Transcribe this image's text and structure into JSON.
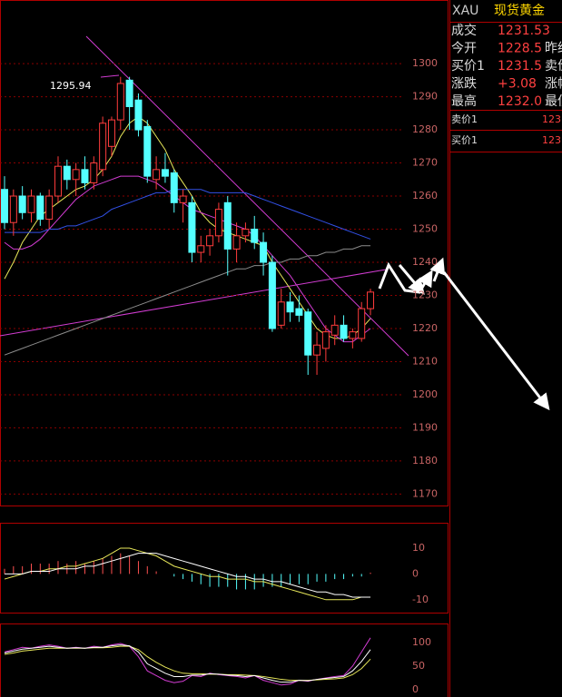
{
  "quote": {
    "symbol": "XAU",
    "name": "现货黄金",
    "rows": [
      [
        "成交",
        "1231.53",
        ""
      ],
      [
        "今开",
        "1228.5",
        "昨结"
      ],
      [
        "买价1",
        "1231.5",
        "卖价"
      ],
      [
        "涨跌",
        "+3.08",
        "涨幅"
      ],
      [
        "最高",
        "1232.0",
        "最低"
      ]
    ],
    "book": [
      [
        "卖价1",
        "123"
      ],
      [
        "买价1",
        "123"
      ]
    ]
  },
  "chart_data": [
    {
      "type": "candlestick",
      "peak_label": "1295.94",
      "ylim": [
        1166,
        1314
      ],
      "yticks": [
        1300,
        1290,
        1280,
        1270,
        1260,
        1250,
        1240,
        1230,
        1220,
        1210,
        1200,
        1190,
        1180,
        1170
      ],
      "grid": true,
      "up_color": "#ff3c3c",
      "down_color": "#54ffff",
      "open": [
        1262,
        1252,
        1260,
        1255,
        1260,
        1253,
        1260,
        1269,
        1265,
        1268,
        1264,
        1268,
        1275,
        1283,
        1295,
        1289,
        1281,
        1265,
        1268,
        1267,
        1258,
        1258,
        1243,
        1245,
        1248,
        1258,
        1244,
        1248,
        1250,
        1246,
        1240,
        1221,
        1228,
        1226,
        1225,
        1212,
        1214,
        1218,
        1221,
        1217,
        1217,
        1226
      ],
      "high": [
        1266,
        1262,
        1263,
        1262,
        1261,
        1262,
        1272,
        1271,
        1270,
        1272,
        1272,
        1284,
        1284,
        1296,
        1296,
        1291,
        1283,
        1272,
        1273,
        1268,
        1262,
        1260,
        1248,
        1250,
        1258,
        1260,
        1252,
        1252,
        1254,
        1249,
        1242,
        1232,
        1231,
        1230,
        1226,
        1219,
        1221,
        1224,
        1224,
        1220,
        1228,
        1232
      ],
      "low": [
        1250,
        1248,
        1253,
        1252,
        1251,
        1250,
        1258,
        1262,
        1260,
        1262,
        1262,
        1266,
        1272,
        1280,
        1280,
        1278,
        1264,
        1262,
        1264,
        1255,
        1252,
        1240,
        1240,
        1242,
        1246,
        1236,
        1240,
        1246,
        1244,
        1236,
        1219,
        1220,
        1222,
        1222,
        1206,
        1206,
        1210,
        1215,
        1216,
        1214,
        1216,
        1224
      ],
      "close": [
        1252,
        1260,
        1255,
        1260,
        1253,
        1260,
        1269,
        1265,
        1268,
        1264,
        1270,
        1282,
        1283,
        1294,
        1287,
        1280,
        1266,
        1268,
        1266,
        1258,
        1260,
        1243,
        1245,
        1248,
        1256,
        1244,
        1248,
        1250,
        1246,
        1240,
        1220,
        1228,
        1225,
        1224,
        1212,
        1215,
        1219,
        1221,
        1217,
        1219,
        1226,
        1231
      ],
      "lines": [
        {
          "color": "#e8e85a",
          "values": [
            1235,
            1240,
            1246,
            1250,
            1254,
            1256,
            1258,
            1260,
            1262,
            1263,
            1265,
            1268,
            1272,
            1278,
            1282,
            1284,
            1282,
            1278,
            1274,
            1268,
            1264,
            1260,
            1255,
            1252,
            1250,
            1249,
            1248,
            1247,
            1246,
            1245,
            1240,
            1236,
            1232,
            1228,
            1224,
            1220,
            1218,
            1217,
            1217,
            1218,
            1220,
            1223
          ]
        },
        {
          "color": "#d23cd2",
          "values": [
            1246,
            1244,
            1244,
            1245,
            1247,
            1250,
            1253,
            1256,
            1259,
            1261,
            1263,
            1264,
            1265,
            1266,
            1266,
            1266,
            1265,
            1264,
            1262,
            1260,
            1258,
            1256,
            1255,
            1254,
            1253,
            1252,
            1251,
            1250,
            1248,
            1245,
            1242,
            1239,
            1236,
            1232,
            1228,
            1224,
            1220,
            1218,
            1216,
            1216,
            1218,
            1220
          ]
        },
        {
          "color": "#3250e6",
          "values": [
            1249,
            1249,
            1249,
            1249,
            1249,
            1250,
            1250,
            1251,
            1251,
            1252,
            1253,
            1254,
            1256,
            1257,
            1258,
            1259,
            1260,
            1261,
            1261,
            1262,
            1262,
            1262,
            1262,
            1261,
            1261,
            1261,
            1261,
            1261,
            1260,
            1259,
            1258,
            1257,
            1256,
            1255,
            1254,
            1253,
            1252,
            1251,
            1250,
            1249,
            1248,
            1247
          ]
        },
        {
          "color": "#8c8c8c",
          "values": [
            1212,
            1213,
            1214,
            1215,
            1216,
            1217,
            1218,
            1219,
            1220,
            1221,
            1222,
            1223,
            1224,
            1225,
            1226,
            1227,
            1228,
            1229,
            1230,
            1231,
            1232,
            1233,
            1234,
            1235,
            1236,
            1237,
            1238,
            1238,
            1239,
            1239,
            1240,
            1240,
            1241,
            1241,
            1242,
            1242,
            1243,
            1243,
            1244,
            1244,
            1245,
            1245
          ]
        }
      ]
    },
    {
      "type": "macd",
      "ylim": [
        -15,
        19.5
      ],
      "yticks": [
        10,
        0,
        -10
      ],
      "up_color": "#ff5050",
      "down_color": "#54ffff",
      "histogram": [
        2,
        3,
        3,
        4,
        4,
        4,
        5,
        4,
        5,
        4,
        5,
        6,
        7,
        8,
        7,
        5,
        3,
        1,
        0,
        -1,
        -2,
        -3,
        -4,
        -5,
        -5,
        -5,
        -6,
        -6,
        -6,
        -5,
        -5,
        -5,
        -4,
        -4,
        -4,
        -3,
        -3,
        -2,
        -2,
        -1,
        -1,
        0.5
      ],
      "lines": [
        {
          "color": "#e8e85a",
          "values": [
            -2,
            -1,
            0,
            1,
            1,
            2,
            2,
            3,
            3,
            4,
            5,
            6,
            8,
            10,
            10,
            9,
            8,
            7,
            5,
            3,
            2,
            1,
            0,
            -1,
            -1,
            -2,
            -2,
            -2,
            -3,
            -3,
            -4,
            -5,
            -6,
            -7,
            -8,
            -9,
            -10,
            -10,
            -10,
            -10,
            -9,
            -9
          ]
        },
        {
          "color": "#ffffff",
          "values": [
            0,
            0,
            0,
            1,
            1,
            1,
            2,
            2,
            2,
            3,
            3,
            4,
            5,
            6,
            7,
            8,
            8,
            8,
            7,
            6,
            5,
            4,
            3,
            2,
            1,
            0,
            -1,
            -1,
            -2,
            -2,
            -3,
            -3,
            -4,
            -5,
            -6,
            -7,
            -7,
            -8,
            -8,
            -9,
            -9,
            -9
          ]
        }
      ]
    },
    {
      "type": "line",
      "ylim": [
        -15.4,
        138.5
      ],
      "yticks": [
        100,
        50,
        0
      ],
      "lines": [
        {
          "color": "#d23cd2",
          "values": [
            80,
            85,
            90,
            88,
            92,
            95,
            92,
            88,
            90,
            88,
            92,
            90,
            95,
            98,
            92,
            70,
            40,
            30,
            20,
            15,
            18,
            30,
            28,
            35,
            32,
            30,
            28,
            25,
            30,
            20,
            15,
            10,
            12,
            20,
            18,
            22,
            25,
            28,
            30,
            50,
            80,
            110
          ]
        },
        {
          "color": "#e8e85a",
          "values": [
            75,
            78,
            82,
            84,
            86,
            88,
            88,
            88,
            88,
            88,
            89,
            89,
            90,
            92,
            92,
            85,
            70,
            58,
            48,
            40,
            35,
            34,
            34,
            33,
            33,
            32,
            32,
            31,
            30,
            28,
            25,
            22,
            20,
            20,
            20,
            21,
            22,
            23,
            25,
            32,
            45,
            65
          ]
        },
        {
          "color": "#ffffff",
          "values": [
            78,
            82,
            86,
            88,
            90,
            92,
            90,
            88,
            89,
            88,
            90,
            90,
            93,
            95,
            93,
            80,
            55,
            45,
            35,
            28,
            28,
            31,
            31,
            34,
            33,
            31,
            30,
            28,
            30,
            25,
            20,
            16,
            16,
            20,
            19,
            22,
            24,
            26,
            28,
            40,
            60,
            85
          ]
        }
      ]
    }
  ]
}
